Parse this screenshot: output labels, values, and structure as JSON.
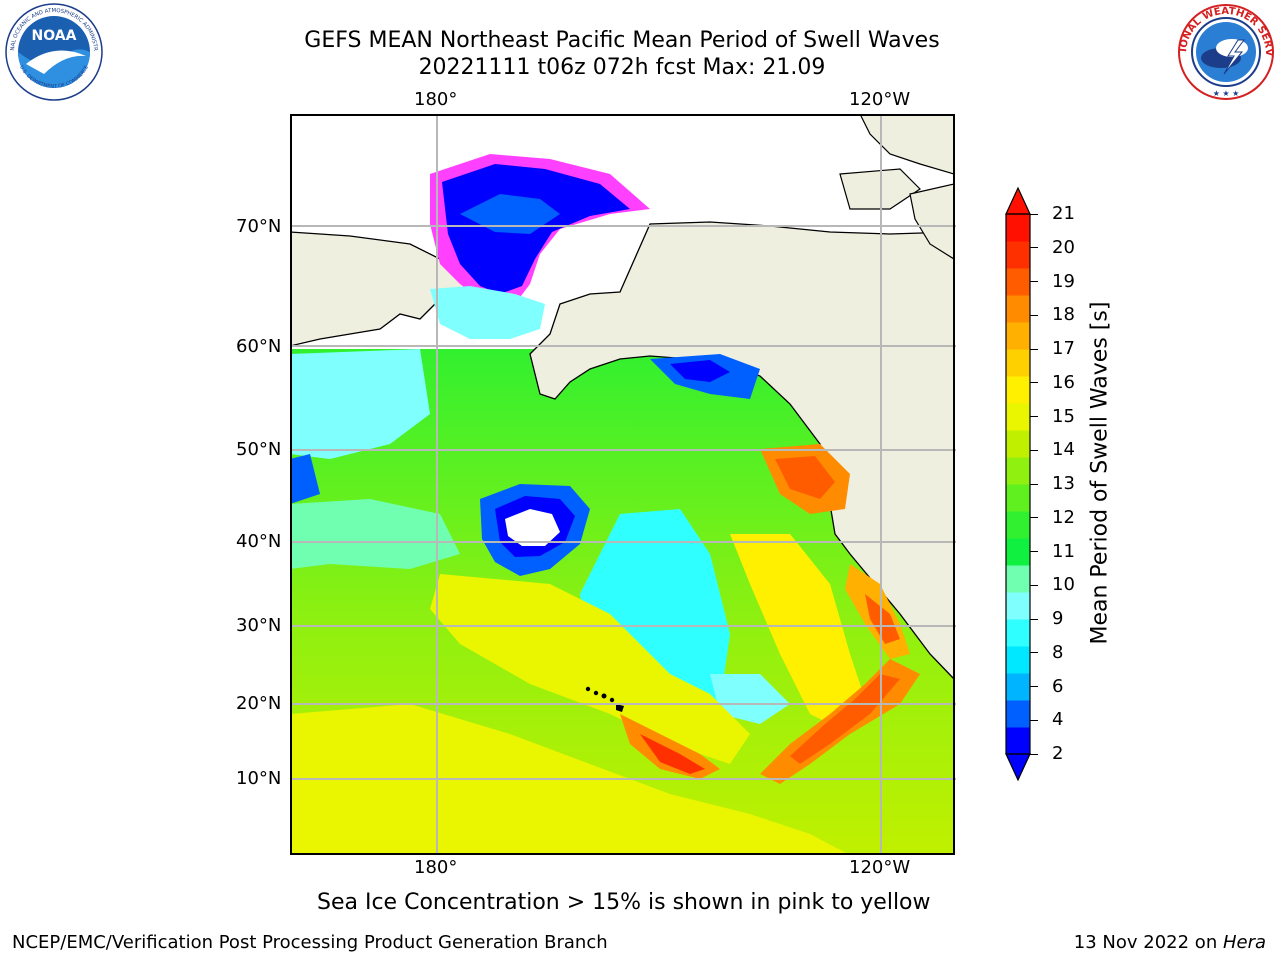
{
  "title": {
    "line1": "GEFS MEAN Northeast Pacific Mean Period of Swell Waves",
    "line2": "20221111 t06z 072h fcst   Max: 21.09"
  },
  "logos": {
    "noaa": {
      "name": "noaa-logo",
      "center_text": "NOAA",
      "ring_text": "NATIONAL OCEANIC AND ATMOSPHERIC ADMINISTRATION",
      "ring_text_bottom": "U.S. DEPARTMENT OF COMMERCE"
    },
    "nws": {
      "name": "nws-logo",
      "ring_text": "NATIONAL WEATHER SERVICE"
    }
  },
  "map": {
    "lon_ticks_top": [
      "180°",
      "120°W"
    ],
    "lon_ticks_bottom": [
      "180°",
      "120°W"
    ],
    "lat_ticks": [
      "70°N",
      "60°N",
      "50°N",
      "40°N",
      "30°N",
      "20°N",
      "10°N"
    ],
    "colors": {
      "land": "#efefdf",
      "grid": "#b8b8b8",
      "coast": "#000000",
      "ice_edge": "#ff40ff"
    }
  },
  "colorbar": {
    "label": "Mean Period of Swell Waves [s]",
    "tick_labels": [
      "21",
      "20",
      "19",
      "18",
      "17",
      "16",
      "15",
      "14",
      "13",
      "12",
      "11",
      "10",
      "9",
      "8",
      "6",
      "4",
      "2"
    ],
    "colors": [
      "#0000ff",
      "#0060ff",
      "#00b4ff",
      "#00e8ff",
      "#30ffff",
      "#80ffff",
      "#70ffb0",
      "#10f040",
      "#30f030",
      "#60f020",
      "#90f010",
      "#c0f000",
      "#eaf500",
      "#fff000",
      "#ffd000",
      "#ffb000",
      "#ff8c00",
      "#ff5c00",
      "#ff3000",
      "#ff1000"
    ]
  },
  "note": "Sea Ice Concentration > 15% is shown in pink to yellow",
  "footer": {
    "left": "NCEP/EMC/Verification Post Processing Product Generation Branch",
    "right_prefix": "13 Nov 2022 on ",
    "right_italic": "Hera"
  }
}
